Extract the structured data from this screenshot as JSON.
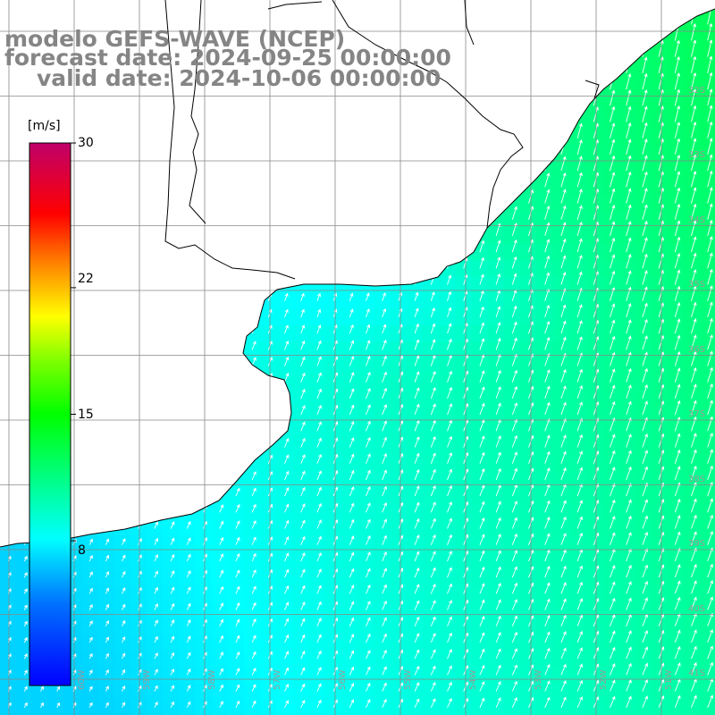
{
  "title": {
    "line1": "modelo GEFS-WAVE (NCEP)",
    "line2": "forecast date: 2024-09-25 00:00:00",
    "line3": "valid date: 2024-10-06 00:00:00"
  },
  "colorbar": {
    "unit": "[m/s]",
    "ticks": [
      "30",
      "22",
      "15",
      "8"
    ],
    "range": [
      0,
      30
    ],
    "colors": [
      "#0000ff",
      "#0080ff",
      "#00ffff",
      "#00ff80",
      "#00ff00",
      "#80ff00",
      "#ffff00",
      "#ff8000",
      "#ff0000",
      "#c0006a"
    ]
  },
  "grid": {
    "lat_labels": [
      "32S",
      "33S",
      "34S",
      "35S",
      "36S",
      "37S",
      "38S",
      "39S",
      "40S",
      "41S"
    ],
    "lon_labels": [
      "60W",
      "59W",
      "58W",
      "57W",
      "56W",
      "55W",
      "54W",
      "53W",
      "52W",
      "51W"
    ]
  },
  "map_data": {
    "type": "wind-vector-field",
    "variable": "wind speed",
    "units": "m/s",
    "speed_range_shown": [
      7,
      13
    ],
    "prevailing_wind": "from south-southwest"
  }
}
